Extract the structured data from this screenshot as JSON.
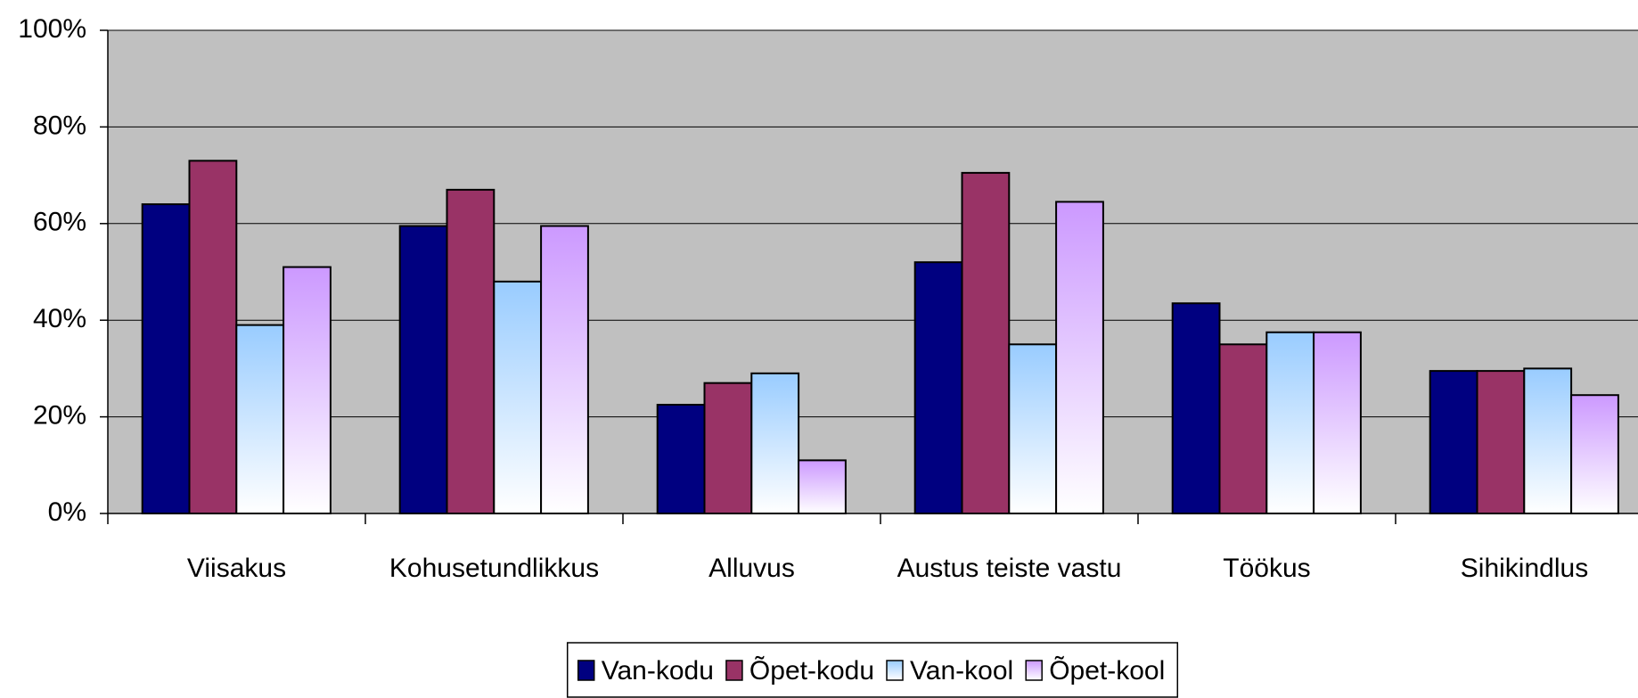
{
  "chart_data": {
    "type": "bar",
    "categories": [
      "Viisakus",
      "Kohusetundlikkus",
      "Alluvus",
      "Austus teiste vastu",
      "Töökus",
      "Sihikindlus"
    ],
    "series": [
      {
        "name": "Van-kodu",
        "color": "#000080",
        "fill": "solid",
        "values": [
          64,
          59.5,
          22.5,
          52,
          43.5,
          29.5
        ]
      },
      {
        "name": "Õpet-kodu",
        "color": "#993366",
        "fill": "solid",
        "values": [
          73,
          67,
          27,
          70.5,
          35,
          29.5
        ]
      },
      {
        "name": "Van-kool",
        "color": "#99ccff",
        "fill": "gradient",
        "values": [
          39,
          48,
          29,
          35,
          37.5,
          30
        ]
      },
      {
        "name": "Õpet-kool",
        "color": "#cc99ff",
        "fill": "gradient",
        "values": [
          51,
          59.5,
          11,
          64.5,
          37.5,
          24.5
        ]
      }
    ],
    "ylim": [
      0,
      100
    ],
    "yticks": [
      {
        "value": 0,
        "label": "0%"
      },
      {
        "value": 20,
        "label": "20%"
      },
      {
        "value": 40,
        "label": "40%"
      },
      {
        "value": 60,
        "label": "60%"
      },
      {
        "value": 80,
        "label": "80%"
      },
      {
        "value": 100,
        "label": "100%"
      }
    ],
    "grid": true,
    "plot_background": "#c0c0c0",
    "legend": "bottom"
  }
}
